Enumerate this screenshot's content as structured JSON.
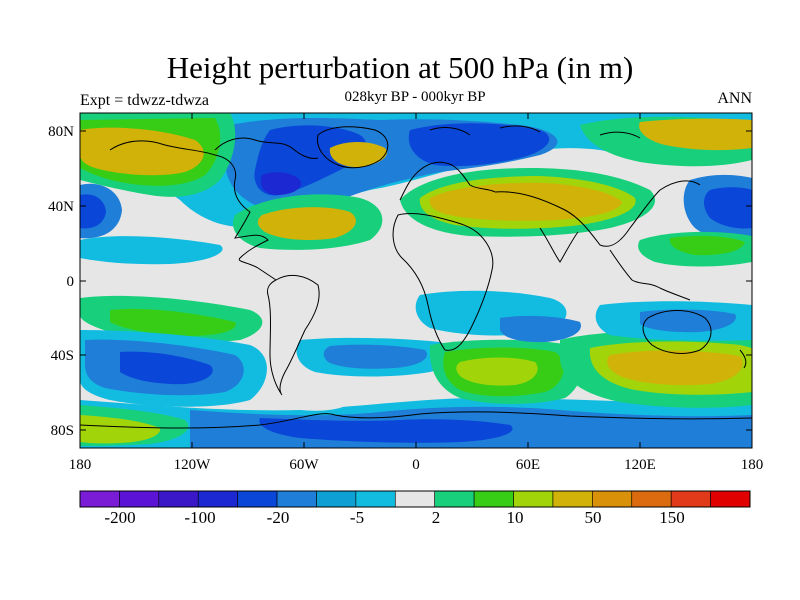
{
  "title": "Height perturbation at 500 hPa (in m)",
  "subtitle": "028kyr BP - 000kyr BP",
  "left_label": "Expt = tdwzz-tdwza",
  "right_label": "ANN",
  "lat_ticks": [
    "80N",
    "40N",
    "0",
    "40S",
    "80S"
  ],
  "lon_ticks": [
    "180",
    "120W",
    "60W",
    "0",
    "60E",
    "120E",
    "180"
  ],
  "colorbar": {
    "colors": [
      "#7a1cd6",
      "#5b14d6",
      "#3a18c8",
      "#1c28d2",
      "#0a46d8",
      "#1f7ed8",
      "#0ea0d4",
      "#12bce0",
      "#e6e6e6",
      "#18d07c",
      "#37cd17",
      "#a2d40a",
      "#d0b208",
      "#d89108",
      "#dc6a0e",
      "#e03a1a",
      "#e00000"
    ],
    "labels": [
      "-200",
      "-100",
      "-20",
      "-5",
      "2",
      "10",
      "50",
      "150"
    ]
  },
  "colors": {
    "strong_negative": "#0a46d8",
    "negative": "#1f7ed8",
    "weak_negative": "#12bce0",
    "neutral": "#e6e6e6",
    "weak_positive": "#18d07c",
    "positive": "#37cd17",
    "moderate_positive": "#a2d40a",
    "strong_positive": "#d0b208",
    "deep_negative": "#1c28d2"
  }
}
